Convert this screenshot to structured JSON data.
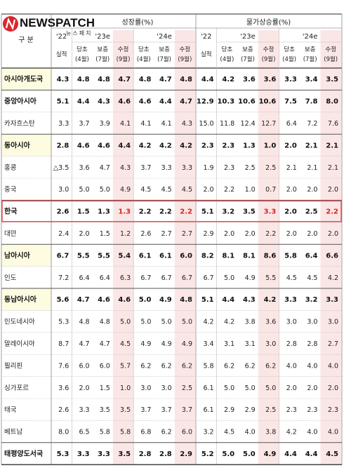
{
  "logo": {
    "name": "NEWSPATCH",
    "sub": "뉴스패치"
  },
  "header": {
    "gubun": "구  분",
    "growth_title": "성장률(%)",
    "inflation_title": "물가상승률(%)",
    "years": [
      "'22",
      "'23e",
      "'24e"
    ],
    "col_labels": [
      "실적",
      "당초\n(4월)",
      "보충\n(7월)",
      "수정\n(9월)",
      "당초\n(4월)",
      "보충\n(7월)",
      "수정\n(9월)"
    ]
  },
  "rows": [
    {
      "name": "아시아개도국",
      "bold": true,
      "band": true,
      "growth": [
        "4.3",
        "4.8",
        "4.8",
        "4.7",
        "4.8",
        "4.7",
        "4.8"
      ],
      "infl": [
        "4.4",
        "4.2",
        "3.6",
        "3.6",
        "3.3",
        "3.4",
        "3.5"
      ]
    },
    {
      "name": "중앙아시아",
      "bold": true,
      "band": false,
      "growth": [
        "5.1",
        "4.4",
        "4.3",
        "4.6",
        "4.6",
        "4.4",
        "4.7"
      ],
      "infl": [
        "12.9",
        "10.3",
        "10.6",
        "10.6",
        "7.5",
        "7.8",
        "8.0"
      ]
    },
    {
      "name": "카자흐스탄",
      "bold": false,
      "band": false,
      "growth": [
        "3.3",
        "3.7",
        "3.9",
        "4.1",
        "4.1",
        "4.1",
        "4.3"
      ],
      "infl": [
        "15.0",
        "11.8",
        "12.4",
        "12.7",
        "6.4",
        "7.2",
        "7.6"
      ]
    },
    {
      "name": "동아시아",
      "bold": true,
      "band": true,
      "growth": [
        "2.8",
        "4.6",
        "4.6",
        "4.4",
        "4.2",
        "4.2",
        "4.2"
      ],
      "infl": [
        "2.3",
        "2.3",
        "1.3",
        "1.0",
        "2.0",
        "2.1",
        "2.1"
      ]
    },
    {
      "name": "홍콩",
      "bold": false,
      "band": false,
      "growth": [
        "△3.5",
        "3.6",
        "4.7",
        "4.3",
        "3.7",
        "3.3",
        "3.3"
      ],
      "infl": [
        "1.9",
        "2.3",
        "2.5",
        "2.5",
        "2.1",
        "2.1",
        "2.1"
      ]
    },
    {
      "name": "중국",
      "bold": false,
      "band": false,
      "growth": [
        "3.0",
        "5.0",
        "5.0",
        "4.9",
        "4.5",
        "4.5",
        "4.5"
      ],
      "infl": [
        "2.0",
        "2.2",
        "1.0",
        "0.7",
        "2.0",
        "2.0",
        "2.0"
      ]
    },
    {
      "name": "한국",
      "bold": true,
      "band": false,
      "highlight": true,
      "growth": [
        "2.6",
        "1.5",
        "1.3",
        "1.3",
        "2.2",
        "2.2",
        "2.2"
      ],
      "infl": [
        "5.1",
        "3.2",
        "3.5",
        "3.3",
        "2.0",
        "2.5",
        "2.2"
      ]
    },
    {
      "name": "대만",
      "bold": false,
      "band": false,
      "growth": [
        "2.4",
        "2.0",
        "1.5",
        "1.2",
        "2.6",
        "2.7",
        "2.7"
      ],
      "infl": [
        "2.9",
        "2.0",
        "2.0",
        "2.2",
        "2.0",
        "2.0",
        "2.0"
      ]
    },
    {
      "name": "남아시아",
      "bold": true,
      "band": true,
      "growth": [
        "6.7",
        "5.5",
        "5.5",
        "5.4",
        "6.1",
        "6.1",
        "6.0"
      ],
      "infl": [
        "8.2",
        "8.1",
        "8.1",
        "8.6",
        "5.8",
        "6.4",
        "6.6"
      ]
    },
    {
      "name": "인도",
      "bold": false,
      "band": false,
      "growth": [
        "7.2",
        "6.4",
        "6.4",
        "6.3",
        "6.7",
        "6.7",
        "6.7"
      ],
      "infl": [
        "6.7",
        "5.0",
        "4.9",
        "5.5",
        "4.5",
        "4.5",
        "4.2"
      ]
    },
    {
      "name": "동남아시아",
      "bold": true,
      "band": true,
      "growth": [
        "5.6",
        "4.7",
        "4.6",
        "4.6",
        "5.0",
        "4.9",
        "4.8"
      ],
      "infl": [
        "5.1",
        "4.4",
        "4.3",
        "4.2",
        "3.3",
        "3.2",
        "3.3"
      ]
    },
    {
      "name": "인도네시아",
      "bold": false,
      "band": false,
      "growth": [
        "5.3",
        "4.8",
        "4.8",
        "5.0",
        "5.0",
        "5.0",
        "5.0"
      ],
      "infl": [
        "4.2",
        "4.2",
        "3.8",
        "3.6",
        "3.0",
        "3.0",
        "3.0"
      ]
    },
    {
      "name": "말레이시아",
      "bold": false,
      "band": false,
      "growth": [
        "8.7",
        "4.7",
        "4.7",
        "4.5",
        "4.9",
        "4.9",
        "4.9"
      ],
      "infl": [
        "3.4",
        "3.1",
        "3.1",
        "3.0",
        "2.8",
        "2.8",
        "2.7"
      ]
    },
    {
      "name": "필리핀",
      "bold": false,
      "band": false,
      "growth": [
        "7.6",
        "6.0",
        "6.0",
        "5.7",
        "6.2",
        "6.2",
        "6.2"
      ],
      "infl": [
        "5.8",
        "6.2",
        "6.2",
        "6.2",
        "4.0",
        "4.0",
        "4.0"
      ]
    },
    {
      "name": "싱가포르",
      "bold": false,
      "band": false,
      "growth": [
        "3.6",
        "2.0",
        "1.5",
        "1.0",
        "3.0",
        "3.0",
        "2.5"
      ],
      "infl": [
        "6.1",
        "5.0",
        "5.0",
        "5.0",
        "2.0",
        "2.0",
        "2.0"
      ]
    },
    {
      "name": "태국",
      "bold": false,
      "band": false,
      "growth": [
        "2.6",
        "3.3",
        "3.5",
        "3.5",
        "3.7",
        "3.7",
        "3.7"
      ],
      "infl": [
        "6.1",
        "2.9",
        "2.9",
        "2.5",
        "2.3",
        "2.3",
        "2.3"
      ]
    },
    {
      "name": "베트남",
      "bold": false,
      "band": false,
      "growth": [
        "8.0",
        "6.5",
        "5.8",
        "5.8",
        "6.8",
        "6.2",
        "6.0"
      ],
      "infl": [
        "3.2",
        "4.5",
        "4.0",
        "3.8",
        "4.2",
        "4.0",
        "4.0"
      ]
    },
    {
      "name": "태평양도서국",
      "bold": true,
      "band": false,
      "growth": [
        "5.3",
        "3.3",
        "3.3",
        "3.5",
        "2.8",
        "2.8",
        "2.9"
      ],
      "infl": [
        "5.2",
        "5.0",
        "5.0",
        "4.9",
        "4.4",
        "4.4",
        "4.5"
      ]
    }
  ],
  "colors": {
    "band": "#fdfbe0",
    "pink": "#fbe6e6",
    "highlight_border": "#e04848",
    "red_text": "#e02020",
    "logo_red": "#d8262e"
  }
}
